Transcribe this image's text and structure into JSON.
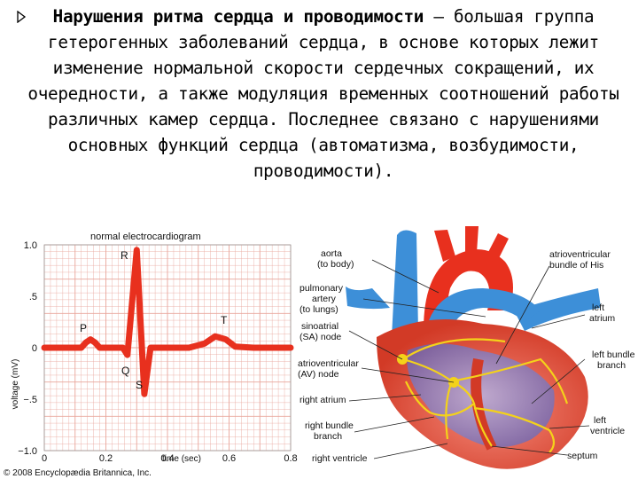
{
  "slide": {
    "bullet_icon": "triangle-right-icon",
    "heading_bold": "Нарушения ритма сердца и проводимости",
    "body_text": " – большая группа гетерогенных заболеваний сердца, в основе которых лежит изменение нормальной скорости сердечных сокращений, их очередности, а также модуляция временных соотношений работы различных камер сердца. Последнее связано с нарушениями основных функций сердца (автоматизма, возбудимости, проводимости)."
  },
  "ecg_figure": {
    "title": "normal electrocardiogram",
    "ylabel": "voltage (mV)",
    "xlabel": "time (sec)",
    "yticks": [
      "1.0",
      ".5",
      "0",
      "−.5",
      "−1.0"
    ],
    "xticks": [
      "0",
      "0.2",
      "0.4",
      "0.6",
      "0.8"
    ],
    "waves": [
      "P",
      "Q",
      "R",
      "S",
      "T"
    ],
    "copyright": "© 2008 Encyclopædia Britannica, Inc.",
    "trace_color": "#e8301e",
    "grid_color": "#e9a59b"
  },
  "heart_figure": {
    "labels": {
      "aorta": "aorta\n(to body)",
      "pulmonary_artery": "pulmonary\nartery\n(to lungs)",
      "sa_node": "sinoatrial\n(SA) node",
      "av_node": "atrioventricular\n(AV) node",
      "right_atrium": "right atrium",
      "right_bundle": "right bundle\nbranch",
      "right_ventricle": "right ventricle",
      "his_bundle": "atrioventricular\nbundle of His",
      "left_atrium": "left\natrium",
      "left_bundle": "left bundle\nbranch",
      "left_ventricle": "left\nventricle",
      "septum": "septum"
    },
    "colors": {
      "aorta": "#e8301e",
      "vessel_blue": "#3d8fd8",
      "conduction": "#f4d21a"
    }
  }
}
